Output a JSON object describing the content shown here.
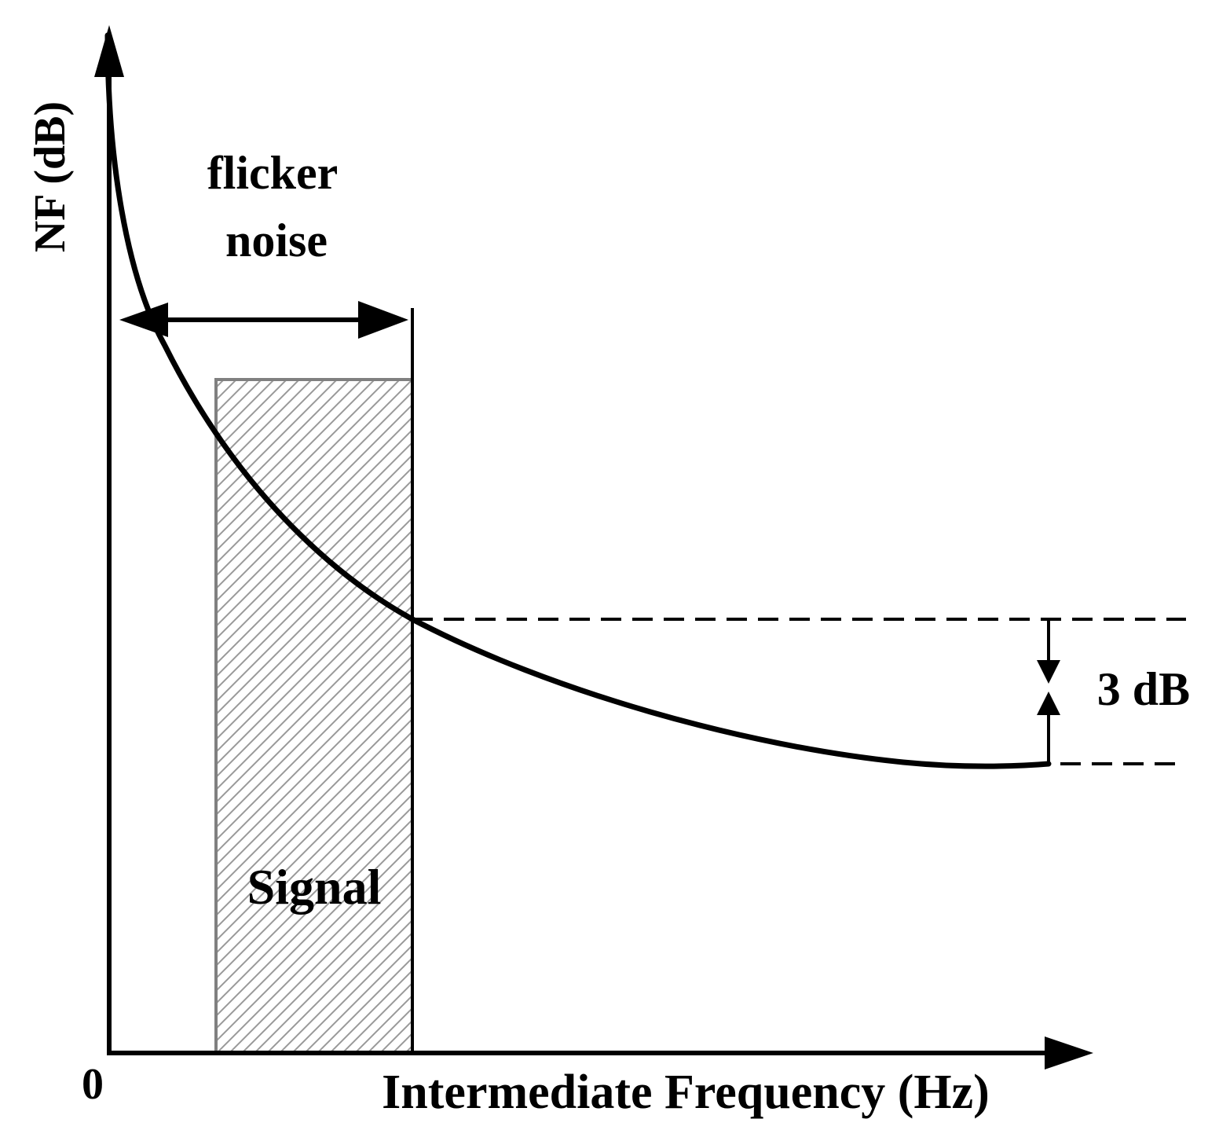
{
  "axes": {
    "y_label": "NF (dB)",
    "x_label": "Intermediate Frequency (Hz)",
    "origin_label": "0"
  },
  "annotations": {
    "flicker_line1": "flicker",
    "flicker_line2": "noise",
    "signal": "Signal",
    "delta": "3 dB"
  },
  "colors": {
    "stroke": "#000000",
    "hatch": "#999999",
    "background": "#ffffff"
  }
}
